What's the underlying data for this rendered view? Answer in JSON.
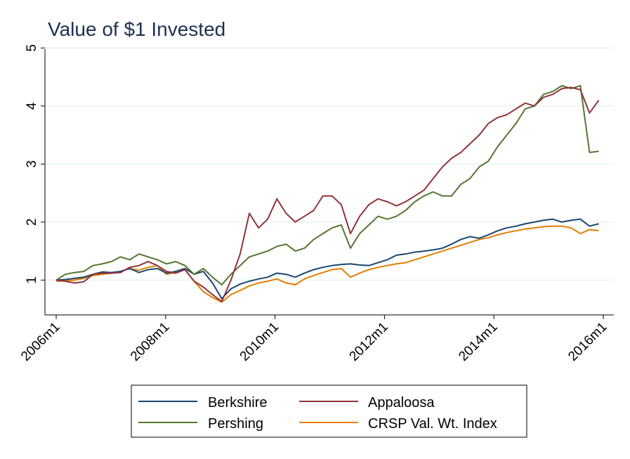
{
  "chart_data": {
    "type": "line",
    "title": "Value of $1 Invested",
    "xlabel": "",
    "ylabel": "",
    "x_start": "2006m1",
    "x_end": "2015m12",
    "xlim": [
      "2006m1",
      "2016m1"
    ],
    "ylim": [
      0.4,
      5.1
    ],
    "x_ticks": [
      "2006m1",
      "2008m1",
      "2010m1",
      "2012m1",
      "2014m1",
      "2016m1"
    ],
    "y_ticks": [
      1,
      2,
      3,
      4,
      5
    ],
    "grid": "horizontal",
    "legend_position": "bottom",
    "series": [
      {
        "name": "Berkshire",
        "color": "#1a476f",
        "x_step": "quarterly",
        "values": [
          1.0,
          1.01,
          1.03,
          1.05,
          1.1,
          1.14,
          1.13,
          1.15,
          1.2,
          1.13,
          1.18,
          1.2,
          1.12,
          1.15,
          1.2,
          1.1,
          1.15,
          0.95,
          0.68,
          0.85,
          0.93,
          0.98,
          1.02,
          1.05,
          1.12,
          1.1,
          1.05,
          1.12,
          1.18,
          1.22,
          1.25,
          1.27,
          1.28,
          1.26,
          1.25,
          1.3,
          1.35,
          1.43,
          1.45,
          1.48,
          1.5,
          1.52,
          1.55,
          1.62,
          1.7,
          1.75,
          1.72,
          1.78,
          1.85,
          1.9,
          1.93,
          1.97,
          2.0,
          2.03,
          2.05,
          2.0,
          2.03,
          2.05,
          1.93,
          1.97
        ]
      },
      {
        "name": "Appaloosa",
        "color": "#90353b",
        "x_step": "quarterly",
        "values": [
          1.0,
          0.98,
          0.95,
          0.97,
          1.1,
          1.12,
          1.12,
          1.13,
          1.22,
          1.25,
          1.32,
          1.25,
          1.15,
          1.12,
          1.18,
          0.98,
          0.88,
          0.75,
          0.63,
          1.0,
          1.45,
          2.15,
          1.9,
          2.05,
          2.4,
          2.15,
          2.0,
          2.1,
          2.2,
          2.45,
          2.45,
          2.3,
          1.8,
          2.1,
          2.3,
          2.4,
          2.35,
          2.28,
          2.35,
          2.45,
          2.55,
          2.75,
          2.95,
          3.1,
          3.2,
          3.35,
          3.5,
          3.7,
          3.8,
          3.85,
          3.95,
          4.05,
          4.0,
          4.15,
          4.2,
          4.3,
          4.32,
          4.28,
          3.88,
          4.1
        ]
      },
      {
        "name": "Pershing",
        "color": "#55752f",
        "x_step": "quarterly",
        "values": [
          1.0,
          1.1,
          1.13,
          1.15,
          1.25,
          1.28,
          1.32,
          1.4,
          1.35,
          1.45,
          1.4,
          1.35,
          1.28,
          1.32,
          1.25,
          1.1,
          1.2,
          1.05,
          0.92,
          1.1,
          1.25,
          1.4,
          1.45,
          1.5,
          1.58,
          1.62,
          1.5,
          1.55,
          1.7,
          1.8,
          1.9,
          1.95,
          1.55,
          1.8,
          1.95,
          2.1,
          2.05,
          2.1,
          2.2,
          2.35,
          2.45,
          2.52,
          2.45,
          2.45,
          2.65,
          2.75,
          2.95,
          3.05,
          3.3,
          3.5,
          3.7,
          3.95,
          4.0,
          4.2,
          4.25,
          4.35,
          4.3,
          4.35,
          3.2,
          3.22
        ]
      },
      {
        "name": "CRSP Val. Wt. Index",
        "color": "#e37e00",
        "x_step": "quarterly",
        "values": [
          0.98,
          0.99,
          1.0,
          1.03,
          1.08,
          1.1,
          1.12,
          1.15,
          1.2,
          1.17,
          1.22,
          1.25,
          1.1,
          1.13,
          1.18,
          0.98,
          0.8,
          0.7,
          0.62,
          0.75,
          0.82,
          0.9,
          0.95,
          0.98,
          1.02,
          0.95,
          0.92,
          1.02,
          1.08,
          1.13,
          1.18,
          1.2,
          1.05,
          1.12,
          1.18,
          1.22,
          1.25,
          1.28,
          1.3,
          1.35,
          1.4,
          1.45,
          1.5,
          1.55,
          1.6,
          1.65,
          1.7,
          1.73,
          1.78,
          1.82,
          1.85,
          1.88,
          1.9,
          1.92,
          1.93,
          1.93,
          1.9,
          1.8,
          1.87,
          1.85
        ]
      }
    ]
  }
}
